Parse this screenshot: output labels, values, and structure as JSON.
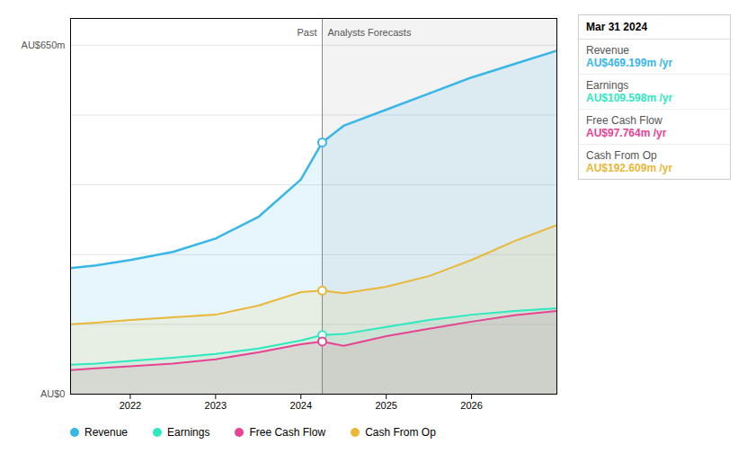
{
  "chart_data": {
    "type": "area",
    "x": [
      2021.3,
      2021.6,
      2022.0,
      2022.5,
      2023.0,
      2023.5,
      2024.0,
      2024.25,
      2024.5,
      2025.0,
      2025.5,
      2026.0,
      2026.5,
      2027.0
    ],
    "xlim": [
      2021.3,
      2027.0
    ],
    "xticks": [
      2022,
      2023,
      2024,
      2025,
      2026
    ],
    "ylim": [
      0,
      700
    ],
    "yticks": [
      130,
      260,
      390,
      520,
      650
    ],
    "grid": true,
    "tick_labels": "x",
    "legend": "bottom",
    "series": [
      {
        "name": "Revenue",
        "color": "#38b6e8",
        "values": [
          235,
          240,
          250,
          265,
          290,
          330,
          400,
          469,
          500,
          530,
          560,
          590,
          615,
          640
        ]
      },
      {
        "name": "Earnings",
        "color": "#2ee8c0",
        "values": [
          55,
          57,
          62,
          68,
          75,
          85,
          100,
          110,
          112,
          125,
          138,
          148,
          155,
          160
        ]
      },
      {
        "name": "Free Cash Flow",
        "color": "#e84393",
        "values": [
          45,
          48,
          52,
          57,
          65,
          78,
          93,
          98,
          90,
          108,
          122,
          135,
          147,
          155
        ]
      },
      {
        "name": "Cash From Op",
        "color": "#e8b838",
        "values": [
          130,
          133,
          138,
          143,
          148,
          165,
          190,
          193,
          188,
          200,
          220,
          250,
          285,
          315
        ]
      }
    ],
    "annotations": [
      {
        "text": "AU$650m",
        "y": 650
      },
      {
        "text": "AU$0",
        "y": 0
      }
    ],
    "divider": {
      "x": 2024.25,
      "left_label": "Past",
      "right_label": "Analysts Forecasts"
    },
    "tooltip": {
      "title": "Mar 31 2024",
      "rows": [
        {
          "name": "Revenue",
          "text": "AU$469.199m /yr",
          "color": "#38b6e8"
        },
        {
          "name": "Earnings",
          "text": "AU$109.598m /yr",
          "color": "#2ee8c0"
        },
        {
          "name": "Free Cash Flow",
          "text": "AU$97.764m /yr",
          "color": "#e84393"
        },
        {
          "name": "Cash From Op",
          "text": "AU$192.609m /yr",
          "color": "#e8b838"
        }
      ]
    }
  }
}
